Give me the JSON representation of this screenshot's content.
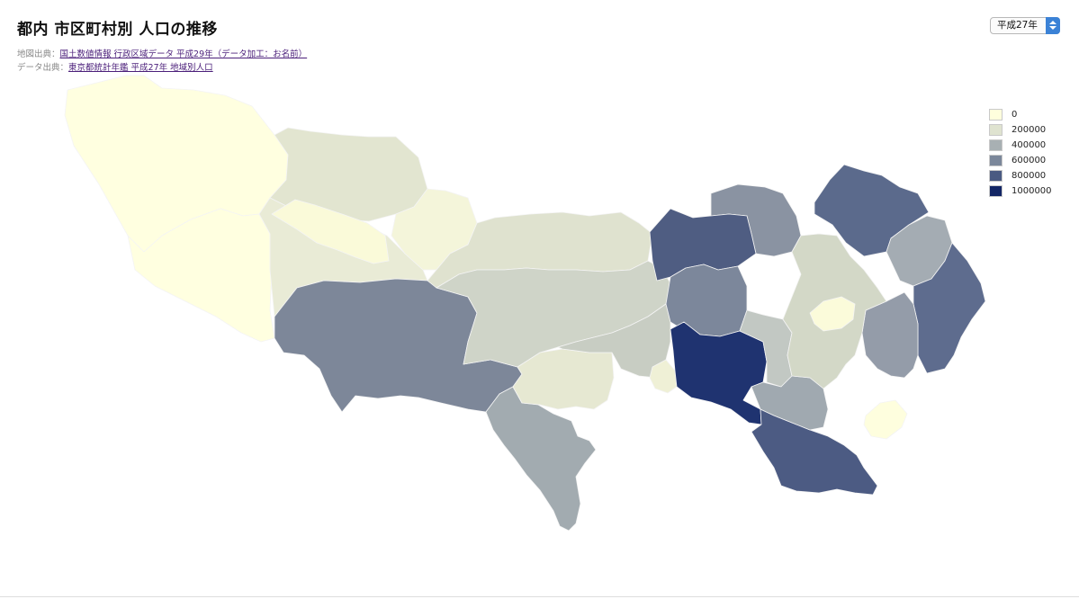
{
  "title": "都内 市区町村別 人口の推移",
  "sources": {
    "map": {
      "label": "地図出典：",
      "link": "国土数値情報 行政区域データ 平成29年（データ加工：お名前）"
    },
    "data": {
      "label": "データ出典：",
      "link": "東京都統計年鑑 平成27年 地域別人口"
    }
  },
  "year_select": {
    "selected": "平成27年"
  },
  "legend": {
    "items": [
      {
        "label": "0",
        "color": "#ffffdd"
      },
      {
        "label": "200000",
        "color": "#dfe3d0"
      },
      {
        "label": "400000",
        "color": "#a8b0b3"
      },
      {
        "label": "600000",
        "color": "#7b879a"
      },
      {
        "label": "800000",
        "color": "#4a5a82"
      },
      {
        "label": "1000000",
        "color": "#132665"
      }
    ]
  },
  "regions": [
    {
      "id": "okutama",
      "color": "#ffffe0"
    },
    {
      "id": "hinohara",
      "color": "#ffffe0"
    },
    {
      "id": "ome",
      "color": "#e2e5d0"
    },
    {
      "id": "akiruno",
      "color": "#e9ebd6"
    },
    {
      "id": "hinode",
      "color": "#fafad9"
    },
    {
      "id": "mizuho-hamura",
      "color": "#f4f5da"
    },
    {
      "id": "hachioji",
      "color": "#7d8799"
    },
    {
      "id": "machida",
      "color": "#a2abb0"
    },
    {
      "id": "tama-inagi",
      "color": "#e6e8d2"
    },
    {
      "id": "west-cities",
      "color": "#dfe2cf"
    },
    {
      "id": "central-cities",
      "color": "#cfd4c8"
    },
    {
      "id": "chofu-fuchu",
      "color": "#c8cdc3"
    },
    {
      "id": "komae-area",
      "color": "#eff0d6"
    },
    {
      "id": "kita-itabashi",
      "color": "#8a93a2"
    },
    {
      "id": "nerima",
      "color": "#4f5d82"
    },
    {
      "id": "suginami",
      "color": "#7c879b"
    },
    {
      "id": "setagaya",
      "color": "#1f3370"
    },
    {
      "id": "ota",
      "color": "#4c5b83"
    },
    {
      "id": "meguro-shibuya",
      "color": "#c2c8c3"
    },
    {
      "id": "shinagawa",
      "color": "#a0a9b0"
    },
    {
      "id": "adachi",
      "color": "#5b6a8c"
    },
    {
      "id": "katsushika",
      "color": "#a4acb3"
    },
    {
      "id": "edogawa",
      "color": "#5e6c8e"
    },
    {
      "id": "koto",
      "color": "#949ca9"
    },
    {
      "id": "center-wards",
      "color": "#d3d8c7"
    },
    {
      "id": "chiyoda",
      "color": "#fbfbda"
    },
    {
      "id": "tokyo-bay-island",
      "color": "#fefede"
    }
  ]
}
